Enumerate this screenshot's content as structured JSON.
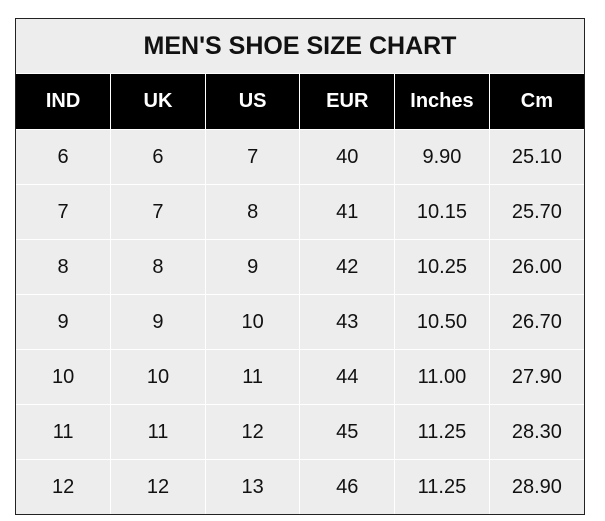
{
  "title": "MEN'S SHOE SIZE CHART",
  "headers": [
    "IND",
    "UK",
    "US",
    "EUR",
    "Inches",
    "Cm"
  ],
  "rows": [
    [
      "6",
      "6",
      "7",
      "40",
      "9.90",
      "25.10"
    ],
    [
      "7",
      "7",
      "8",
      "41",
      "10.15",
      "25.70"
    ],
    [
      "8",
      "8",
      "9",
      "42",
      "10.25",
      "26.00"
    ],
    [
      "9",
      "9",
      "10",
      "43",
      "10.50",
      "26.70"
    ],
    [
      "10",
      "10",
      "11",
      "44",
      "11.00",
      "27.90"
    ],
    [
      "11",
      "11",
      "12",
      "45",
      "11.25",
      "28.30"
    ],
    [
      "12",
      "12",
      "13",
      "46",
      "11.25",
      "28.90"
    ]
  ],
  "colors": {
    "header_bg": "#000000",
    "cell_bg": "#ededed",
    "grid": "#ffffff"
  }
}
